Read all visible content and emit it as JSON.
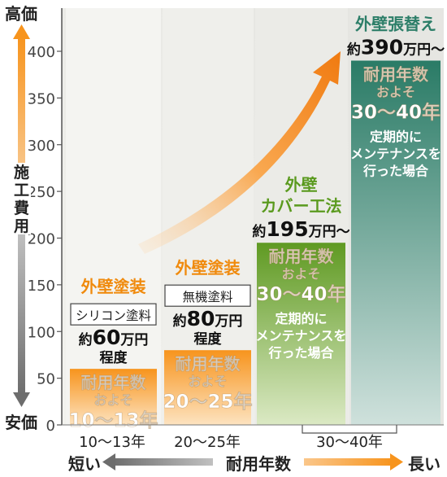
{
  "chart_data": {
    "type": "bar",
    "ylim": [
      0,
      420
    ],
    "yticks": [
      0,
      50,
      100,
      150,
      200,
      250,
      300,
      350,
      400
    ],
    "y_axis_top_label": "高価",
    "y_axis_bottom_label": "安価",
    "ylabel": "施工費用",
    "xlabel": "耐用年数",
    "x_left_label": "短い",
    "x_right_label": "長い",
    "categories": [
      "10〜13年",
      "20〜25年",
      "30〜40年"
    ],
    "bars": [
      {
        "title": "外壁塗装",
        "material": "シリコン塗料",
        "price_prefix": "約",
        "price_number": "60",
        "price_suffix": "万円",
        "price_note": "程度",
        "value": 60,
        "life_line1": "耐用年数",
        "life_line2": "およそ",
        "life_line3": "10〜13年",
        "extra": [],
        "color": "#f89b1f"
      },
      {
        "title": "外壁塗装",
        "material": "無機塗料",
        "price_prefix": "約",
        "price_number": "80",
        "price_suffix": "万円",
        "price_note": "程度",
        "value": 80,
        "life_line1": "耐用年数",
        "life_line2": "およそ",
        "life_line3": "20〜25年",
        "extra": [],
        "color": "#f89b1f"
      },
      {
        "title_line1": "外壁",
        "title_line2": "カバー工法",
        "price_prefix": "約",
        "price_number": "195",
        "price_suffix": "万円〜",
        "value": 195,
        "life_line1": "耐用年数",
        "life_line2": "およそ",
        "life_line3": "30〜40年",
        "extra": [
          "定期的に",
          "メンテナンスを",
          "行った場合"
        ],
        "color": "#6f9a28"
      },
      {
        "title": "外壁張替え",
        "price_prefix": "約",
        "price_number": "390",
        "price_suffix": "万円〜",
        "value": 390,
        "life_line1": "耐用年数",
        "life_line2": "およそ",
        "life_line3": "30〜40年",
        "extra": [
          "定期的に",
          "メンテナンスを",
          "行った場合"
        ],
        "color": "#2c8069"
      }
    ],
    "colors": {
      "orange": "#f7941d",
      "green": "#5a9a26",
      "teal": "#2c7e68",
      "axis": "#555555"
    }
  }
}
